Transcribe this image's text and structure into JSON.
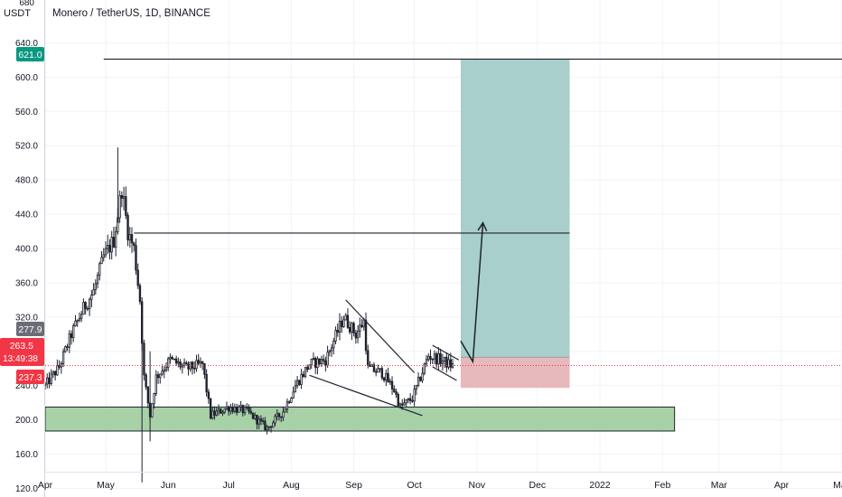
{
  "header": {
    "title": "Monero / TetherUS, 1D, BINANCE",
    "currency": "USDT",
    "top_tick_partial": "680"
  },
  "price_badges": {
    "target": {
      "value": "621.0",
      "color": "#089981"
    },
    "high": {
      "value": "277.9",
      "color": "#6a6d78"
    },
    "current": {
      "value": "263.5",
      "countdown": "13:49:38",
      "color": "#f23645"
    },
    "stop": {
      "value": "237.3",
      "color": "#f23645"
    }
  },
  "colors": {
    "up": "#089981",
    "down": "#f23645",
    "candle": "#1e222d",
    "support_zone": "#9fcc9f",
    "profit_zone": "#a8cfcb",
    "loss_zone": "#e7b8bc",
    "axis_text": "#131722",
    "grid": "#f0f3fa"
  },
  "chart_data": {
    "type": "candlestick",
    "title": "Monero / TetherUS, 1D, BINANCE",
    "ylabel": "USDT",
    "ylim": [
      110,
      690
    ],
    "y_ticks": [
      120,
      160,
      200,
      240,
      280,
      320,
      360,
      400,
      440,
      480,
      520,
      560,
      600,
      640
    ],
    "x_ticks": [
      "Apr",
      "May",
      "Jun",
      "Jul",
      "Aug",
      "Sep",
      "Oct",
      "Nov",
      "Dec",
      "2022",
      "Feb",
      "Mar",
      "Apr",
      "May"
    ],
    "x_range": [
      "2021-04-01",
      "2022-05-01"
    ],
    "price_path": [
      {
        "date": "2021-04-01",
        "price": 240
      },
      {
        "date": "2021-04-08",
        "price": 262
      },
      {
        "date": "2021-04-14",
        "price": 300
      },
      {
        "date": "2021-04-20",
        "price": 330
      },
      {
        "date": "2021-04-25",
        "price": 350
      },
      {
        "date": "2021-04-30",
        "price": 390
      },
      {
        "date": "2021-05-05",
        "price": 410
      },
      {
        "date": "2021-05-09",
        "price": 470
      },
      {
        "date": "2021-05-12",
        "price": 420
      },
      {
        "date": "2021-05-15",
        "price": 400
      },
      {
        "date": "2021-05-18",
        "price": 340
      },
      {
        "date": "2021-05-20",
        "price": 250
      },
      {
        "date": "2021-05-23",
        "price": 205
      },
      {
        "date": "2021-05-26",
        "price": 250
      },
      {
        "date": "2021-06-02",
        "price": 270
      },
      {
        "date": "2021-06-10",
        "price": 260
      },
      {
        "date": "2021-06-18",
        "price": 265
      },
      {
        "date": "2021-06-22",
        "price": 205
      },
      {
        "date": "2021-07-01",
        "price": 215
      },
      {
        "date": "2021-07-10",
        "price": 210
      },
      {
        "date": "2021-07-20",
        "price": 190
      },
      {
        "date": "2021-07-28",
        "price": 210
      },
      {
        "date": "2021-08-03",
        "price": 240
      },
      {
        "date": "2021-08-10",
        "price": 265
      },
      {
        "date": "2021-08-18",
        "price": 270
      },
      {
        "date": "2021-08-27",
        "price": 320
      },
      {
        "date": "2021-09-02",
        "price": 300
      },
      {
        "date": "2021-09-06",
        "price": 315
      },
      {
        "date": "2021-09-08",
        "price": 260
      },
      {
        "date": "2021-09-15",
        "price": 255
      },
      {
        "date": "2021-09-21",
        "price": 235
      },
      {
        "date": "2021-09-24",
        "price": 215
      },
      {
        "date": "2021-09-30",
        "price": 225
      },
      {
        "date": "2021-10-04",
        "price": 250
      },
      {
        "date": "2021-10-08",
        "price": 275
      },
      {
        "date": "2021-10-14",
        "price": 270
      },
      {
        "date": "2021-10-20",
        "price": 263
      }
    ],
    "horizontal_lines": [
      {
        "price": 621,
        "from": "2021-04-30",
        "to": "2022-05-01"
      },
      {
        "price": 418,
        "from": "2021-05-15",
        "to": "2021-12-17"
      }
    ],
    "support_zone": {
      "from": "2021-04-01",
      "to": "2022-02-07",
      "low": 187,
      "high": 215
    },
    "falling_wedge": {
      "upper": [
        {
          "date": "2021-08-28",
          "price": 340
        },
        {
          "date": "2021-10-01",
          "price": 255
        }
      ],
      "lower": [
        {
          "date": "2021-08-10",
          "price": 252
        },
        {
          "date": "2021-10-05",
          "price": 205
        }
      ]
    },
    "flag": {
      "upper": [
        {
          "date": "2021-10-10",
          "price": 287
        },
        {
          "date": "2021-10-23",
          "price": 270
        }
      ],
      "lower": [
        {
          "date": "2021-10-10",
          "price": 262
        },
        {
          "date": "2021-10-22",
          "price": 246
        }
      ]
    },
    "long_position": {
      "from": "2021-10-24",
      "to": "2021-12-17",
      "entry": 273,
      "target": 621,
      "stop": 237.3
    },
    "projection_arrow": [
      {
        "date": "2021-10-24",
        "price": 292
      },
      {
        "date": "2021-10-30",
        "price": 268
      },
      {
        "date": "2021-11-04",
        "price": 430
      }
    ]
  }
}
